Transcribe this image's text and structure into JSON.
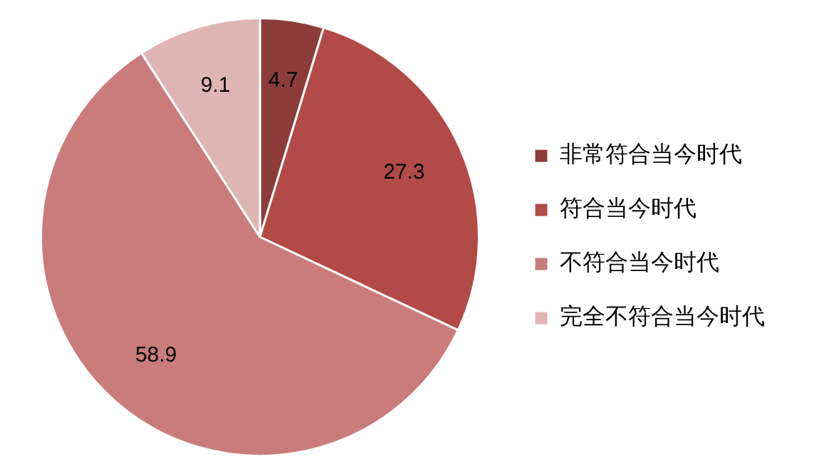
{
  "chart_data": {
    "type": "pie",
    "categories": [
      "非常符合当今时代",
      "符合当今时代",
      "不符合当今时代",
      "完全不符合当今时代"
    ],
    "values": [
      4.7,
      27.3,
      58.9,
      9.1
    ],
    "colors": [
      "#8e3b3b",
      "#b24a48",
      "#c97c7b",
      "#dfb5b4"
    ],
    "data_labels": true,
    "legend": "right"
  }
}
